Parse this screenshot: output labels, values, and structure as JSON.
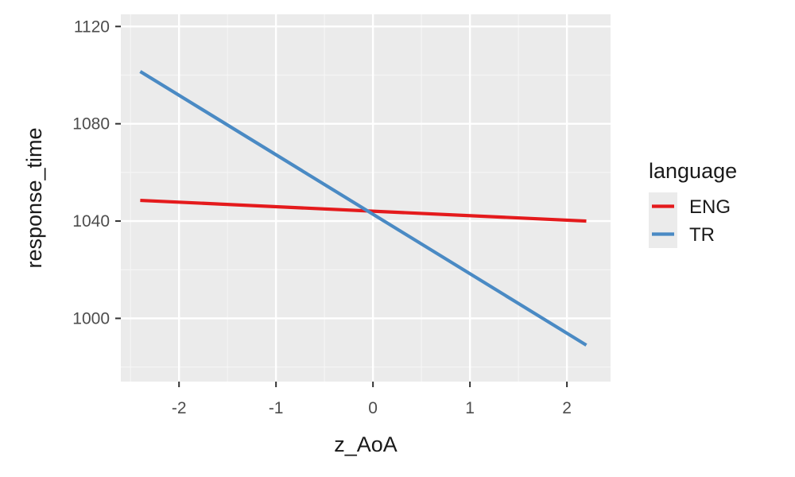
{
  "chart_data": {
    "type": "line",
    "title": "",
    "xlabel": "z_AoA",
    "ylabel": "response_time",
    "xlim": [
      -2.6,
      2.45
    ],
    "ylim": [
      974,
      1125
    ],
    "x_ticks": [
      -2,
      -1,
      0,
      1,
      2
    ],
    "x_tick_labels": [
      "-2",
      "-1",
      "0",
      "1",
      "2"
    ],
    "y_ticks": [
      1000,
      1040,
      1080,
      1120
    ],
    "y_tick_labels": [
      "1000",
      "1040",
      "1080",
      "1120"
    ],
    "grid": true,
    "legend": {
      "title": "language",
      "position": "right"
    },
    "series": [
      {
        "name": "ENG",
        "color": "#e41a1c",
        "x": [
          -2.4,
          2.2
        ],
        "y": [
          1048.5,
          1040.0
        ]
      },
      {
        "name": "TR",
        "color": "#4a8ac4",
        "x": [
          -2.4,
          2.2
        ],
        "y": [
          1101.5,
          989.0
        ]
      }
    ]
  }
}
